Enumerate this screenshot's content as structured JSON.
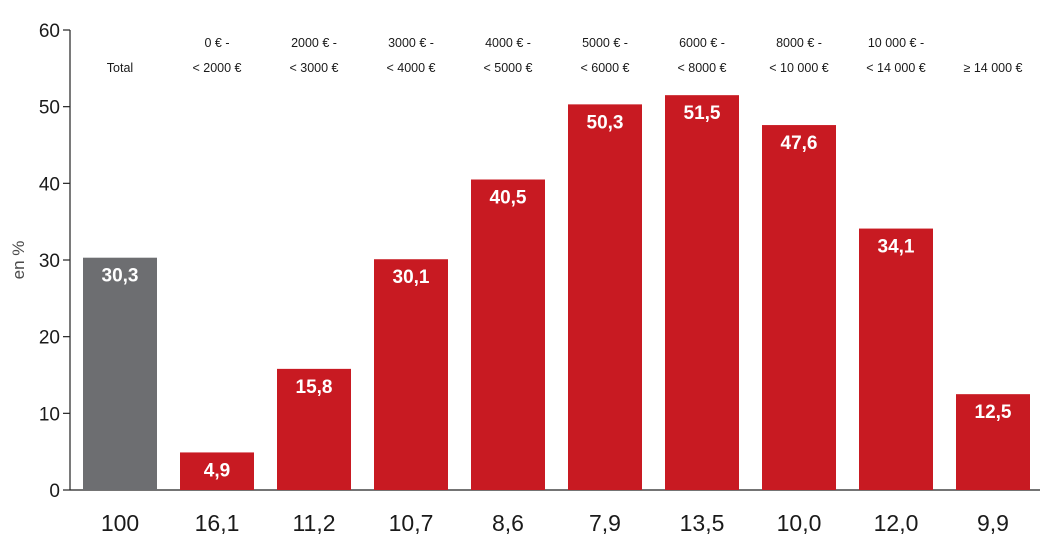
{
  "chart_data": {
    "type": "bar",
    "ylabel": "en %",
    "ylim": [
      0,
      60
    ],
    "yticks": [
      0,
      10,
      20,
      30,
      40,
      50,
      60
    ],
    "grid": false,
    "categories": [
      {
        "lines": [
          "Total"
        ],
        "value": 30.3,
        "value_label": "30,3",
        "bottom": "100",
        "color": "#6d6e71"
      },
      {
        "lines": [
          "0 € -",
          "< 2000 €"
        ],
        "value": 4.9,
        "value_label": "4,9",
        "bottom": "16,1",
        "color": "#c81a22"
      },
      {
        "lines": [
          "2000 € -",
          "< 3000 €"
        ],
        "value": 15.8,
        "value_label": "15,8",
        "bottom": "11,2",
        "color": "#c81a22"
      },
      {
        "lines": [
          "3000 € -",
          "< 4000 €"
        ],
        "value": 30.1,
        "value_label": "30,1",
        "bottom": "10,7",
        "color": "#c81a22"
      },
      {
        "lines": [
          "4000 € -",
          "< 5000 €"
        ],
        "value": 40.5,
        "value_label": "40,5",
        "bottom": "8,6",
        "color": "#c81a22"
      },
      {
        "lines": [
          "5000 € -",
          "< 6000 €"
        ],
        "value": 50.3,
        "value_label": "50,3",
        "bottom": "7,9",
        "color": "#c81a22"
      },
      {
        "lines": [
          "6000 € -",
          "< 8000 €"
        ],
        "value": 51.5,
        "value_label": "51,5",
        "bottom": "13,5",
        "color": "#c81a22"
      },
      {
        "lines": [
          "8000 € -",
          "< 10 000 €"
        ],
        "value": 47.6,
        "value_label": "47,6",
        "bottom": "10,0",
        "color": "#c81a22"
      },
      {
        "lines": [
          "10 000 € -",
          "< 14 000 €"
        ],
        "value": 34.1,
        "value_label": "34,1",
        "bottom": "12,0",
        "color": "#c81a22"
      },
      {
        "lines": [
          "≥ 14 000 €"
        ],
        "value": 12.5,
        "value_label": "12,5",
        "bottom": "9,9",
        "color": "#c81a22"
      }
    ]
  }
}
